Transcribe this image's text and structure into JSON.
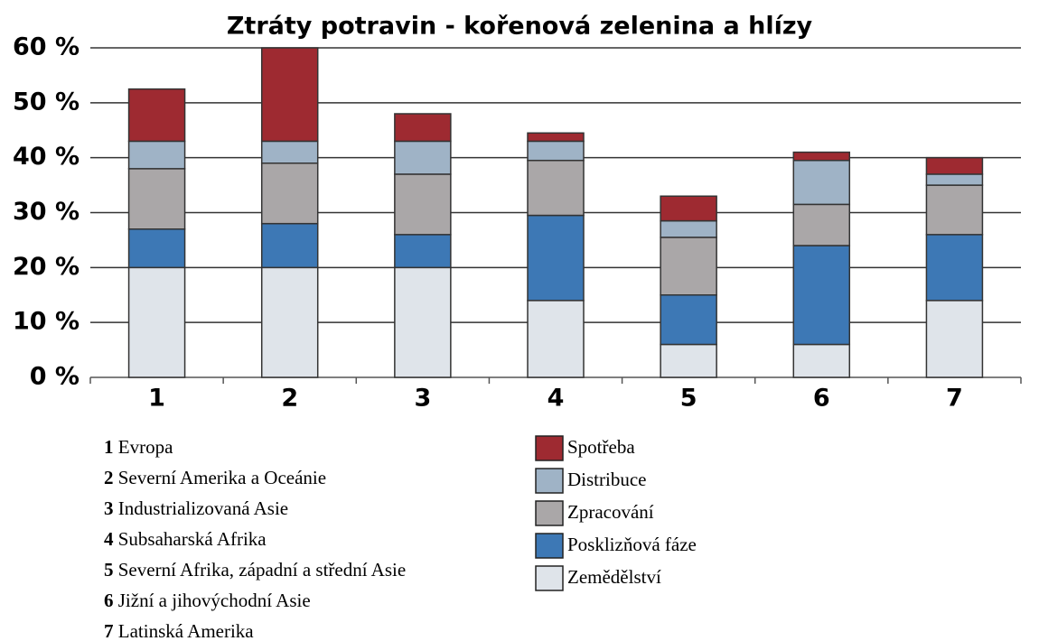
{
  "chart_data": {
    "type": "stacked_bar",
    "title": "Ztráty potravin - kořenová zelenina a hlízy",
    "categories": [
      "1",
      "2",
      "3",
      "4",
      "5",
      "6",
      "7"
    ],
    "category_descriptions": [
      "Evropa",
      "Severní Amerika a Oceánie",
      "Industrializovaná Asie",
      "Subsaharská Afrika",
      "Severní Afrika, západní a střední Asie",
      "Jižní a jihovýchodní Asie",
      "Latinská Amerika"
    ],
    "series": [
      {
        "name": "Zemědělství",
        "color": "#dfe4ea",
        "values": [
          20,
          20,
          20,
          14,
          6,
          6,
          14
        ]
      },
      {
        "name": "Posklizňová fáze",
        "color": "#3d78b5",
        "values": [
          7,
          8,
          6,
          15.5,
          9,
          18,
          12
        ]
      },
      {
        "name": "Zpracování",
        "color": "#aaa7a8",
        "values": [
          11,
          11,
          11,
          10,
          10.5,
          7.5,
          9
        ]
      },
      {
        "name": "Distribuce",
        "color": "#9fb3c6",
        "values": [
          5,
          4,
          6,
          3.5,
          3,
          8,
          2
        ]
      },
      {
        "name": "Spotřeba",
        "color": "#9e2a31",
        "values": [
          9.5,
          17,
          5,
          1.5,
          4.5,
          1.5,
          3
        ]
      }
    ],
    "ylim": [
      0,
      60
    ],
    "yticks": [
      {
        "value": 0,
        "label": "0 %"
      },
      {
        "value": 10,
        "label": "10 %"
      },
      {
        "value": 20,
        "label": "20 %"
      },
      {
        "value": 30,
        "label": "30 %"
      },
      {
        "value": 40,
        "label": "40 %"
      },
      {
        "value": 50,
        "label": "50 %"
      },
      {
        "value": 60,
        "label": "60 %"
      }
    ],
    "grid": true
  }
}
